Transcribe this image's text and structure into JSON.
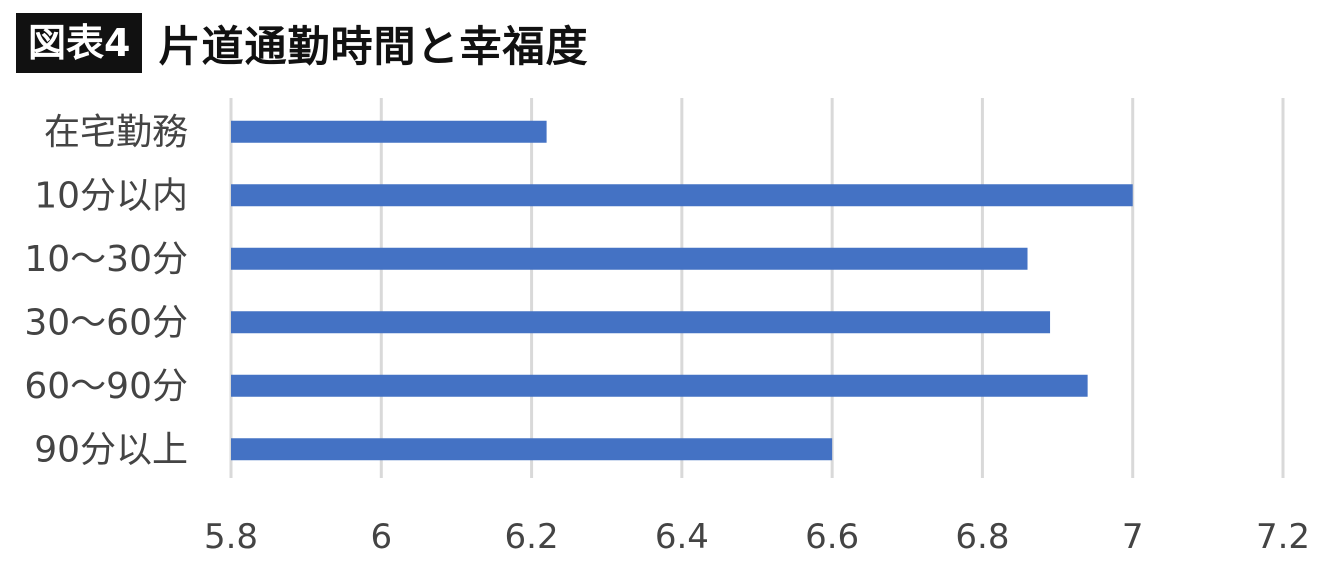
{
  "header": {
    "badge": "図表4",
    "title": "片道通勤時間と幸福度"
  },
  "chart_data": {
    "type": "bar",
    "orientation": "horizontal",
    "title": "片道通勤時間と幸福度",
    "categories": [
      "在宅勤務",
      "10分以内",
      "10～30分",
      "30～60分",
      "60～90分",
      "90分以上"
    ],
    "values": [
      6.22,
      7.0,
      6.86,
      6.89,
      6.94,
      6.6
    ],
    "xlim": [
      5.8,
      7.2
    ],
    "xticks": [
      5.8,
      6,
      6.2,
      6.4,
      6.6,
      6.8,
      7,
      7.2
    ],
    "xtick_labels": [
      "5.8",
      "6",
      "6.2",
      "6.4",
      "6.6",
      "6.8",
      "7",
      "7.2"
    ],
    "grid": true,
    "legend": "none",
    "bar_color": "#4472C4",
    "grid_color": "#D9D9D9"
  }
}
